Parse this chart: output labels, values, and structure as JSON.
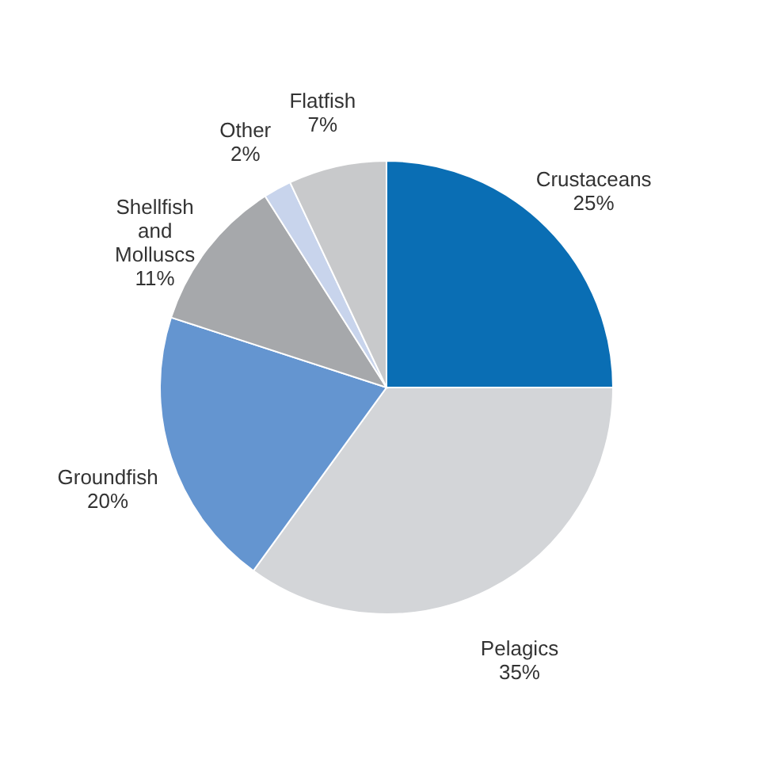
{
  "chart_data": {
    "type": "pie",
    "categories": [
      "Crustaceans",
      "Pelagics",
      "Groundfish",
      "Shellfish and Molluscs",
      "Other",
      "Flatfish"
    ],
    "values": [
      25,
      35,
      20,
      11,
      2,
      7
    ],
    "colors": [
      "#0a6eb4",
      "#d3d5d8",
      "#6495d0",
      "#a6a8ab",
      "#c8d4ec",
      "#c8c9cb"
    ],
    "value_labels": [
      "25%",
      "35%",
      "20%",
      "11%",
      "2%",
      "7%"
    ]
  }
}
